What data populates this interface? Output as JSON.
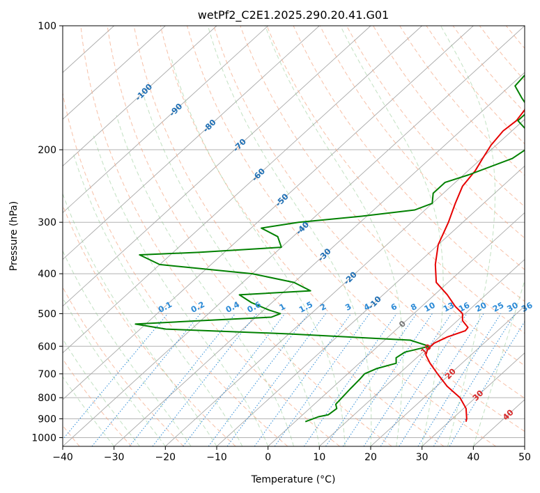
{
  "chart_data": {
    "type": "line",
    "title": "wetPf2_C2E1.2025.290.20.41.G01",
    "xlabel": "Temperature (°C)",
    "ylabel": "Pressure (hPa)",
    "xlim": [
      -40,
      50
    ],
    "ylim": [
      1050,
      100
    ],
    "y_scale": "log",
    "x_ticks": [
      -40,
      -30,
      -20,
      -10,
      0,
      10,
      20,
      30,
      40,
      50
    ],
    "y_ticks": [
      100,
      200,
      300,
      400,
      500,
      600,
      700,
      800,
      900,
      1000
    ],
    "grid": true,
    "series": [
      {
        "role": "temperature",
        "color": "#e60000",
        "points": [
          [
            33.3,
            915
          ],
          [
            32.8,
            900
          ],
          [
            30.5,
            850
          ],
          [
            27.0,
            800
          ],
          [
            22.0,
            750
          ],
          [
            17.5,
            700
          ],
          [
            13.8,
            660
          ],
          [
            11.2,
            630
          ],
          [
            10.3,
            610
          ],
          [
            10.3,
            590
          ],
          [
            11.5,
            570
          ],
          [
            13.7,
            550
          ],
          [
            13.5,
            540
          ],
          [
            11.0,
            520
          ],
          [
            9.5,
            500
          ],
          [
            6.5,
            480
          ],
          [
            2.5,
            450
          ],
          [
            -2.3,
            420
          ],
          [
            -6.3,
            380
          ],
          [
            -10.0,
            340
          ],
          [
            -12.8,
            300
          ],
          [
            -15.5,
            270
          ],
          [
            -17.8,
            245
          ],
          [
            -18.6,
            225
          ],
          [
            -19.8,
            210
          ],
          [
            -21.0,
            195
          ],
          [
            -21.7,
            180
          ],
          [
            -21.3,
            170
          ],
          [
            -22.0,
            160
          ],
          [
            -25.0,
            145
          ],
          [
            -26.6,
            135
          ],
          [
            -28.1,
            125
          ],
          [
            -28.9,
            115
          ],
          [
            -28.4,
            110
          ],
          [
            -26.5,
            105
          ],
          [
            -25.3,
            100
          ]
        ]
      },
      {
        "role": "dewpoint",
        "color": "#008000",
        "points": [
          [
            2.0,
            915
          ],
          [
            3.5,
            890
          ],
          [
            5.0,
            880
          ],
          [
            5.3,
            850
          ],
          [
            4.2,
            830
          ],
          [
            4.0,
            800
          ],
          [
            3.7,
            760
          ],
          [
            3.5,
            720
          ],
          [
            3.3,
            700
          ],
          [
            4.5,
            680
          ],
          [
            7.2,
            660
          ],
          [
            6.0,
            640
          ],
          [
            6.5,
            620
          ],
          [
            10.0,
            600
          ],
          [
            5.0,
            580
          ],
          [
            -20.0,
            560
          ],
          [
            -45.0,
            545
          ],
          [
            -52.0,
            530
          ],
          [
            -40.0,
            520
          ],
          [
            -27.0,
            510
          ],
          [
            -26.0,
            500
          ],
          [
            -29.0,
            490
          ],
          [
            -34.0,
            470
          ],
          [
            -38.0,
            450
          ],
          [
            -25.0,
            440
          ],
          [
            -30.0,
            420
          ],
          [
            -40.0,
            400
          ],
          [
            -60.0,
            380
          ],
          [
            -66.0,
            360
          ],
          [
            -55.0,
            355
          ],
          [
            -40.0,
            345
          ],
          [
            -43.0,
            325
          ],
          [
            -48.0,
            310
          ],
          [
            -42.0,
            300
          ],
          [
            -31.0,
            290
          ],
          [
            -22.0,
            280
          ],
          [
            -20.0,
            270
          ],
          [
            -22.0,
            255
          ],
          [
            -22.0,
            240
          ],
          [
            -19.0,
            230
          ],
          [
            -14.0,
            210
          ],
          [
            -13.0,
            195
          ],
          [
            -17.0,
            180
          ],
          [
            -21.0,
            170
          ],
          [
            -21.0,
            160
          ],
          [
            -25.0,
            150
          ],
          [
            -29.0,
            140
          ],
          [
            -29.5,
            130
          ],
          [
            -31.0,
            120
          ],
          [
            -29.5,
            115
          ],
          [
            -25.0,
            110
          ],
          [
            -19.0,
            100
          ]
        ]
      }
    ],
    "isotherm_labels": [
      {
        "text": "-100",
        "t": -100,
        "p": 145,
        "color": "#1f6fb4"
      },
      {
        "text": "-90",
        "t": -90,
        "p": 160,
        "color": "#1f6fb4"
      },
      {
        "text": "-80",
        "t": -80,
        "p": 175,
        "color": "#1f6fb4"
      },
      {
        "text": "-70",
        "t": -70,
        "p": 195,
        "color": "#1f6fb4"
      },
      {
        "text": "-60",
        "t": -60,
        "p": 230,
        "color": "#1f6fb4"
      },
      {
        "text": "-50",
        "t": -50,
        "p": 265,
        "color": "#1f6fb4"
      },
      {
        "text": "-40",
        "t": -40,
        "p": 310,
        "color": "#1f6fb4"
      },
      {
        "text": "-30",
        "t": -30,
        "p": 360,
        "color": "#1f6fb4"
      },
      {
        "text": "-20",
        "t": -20,
        "p": 410,
        "color": "#1f6fb4"
      },
      {
        "text": "-10",
        "t": -10,
        "p": 470,
        "color": "#1f6fb4"
      },
      {
        "text": "0",
        "t": 0,
        "p": 530,
        "color": "#777777"
      },
      {
        "text": "10",
        "t": 10,
        "p": 610,
        "color": "#d62728"
      },
      {
        "text": "20",
        "t": 20,
        "p": 700,
        "color": "#d62728"
      },
      {
        "text": "30",
        "t": 30,
        "p": 790,
        "color": "#d62728"
      },
      {
        "text": "40",
        "t": 40,
        "p": 880,
        "color": "#d62728"
      }
    ],
    "mixing_ratio_labels": [
      "0.1",
      "0.2",
      "0.4",
      "0.6",
      "1",
      "1.5",
      "2",
      "3",
      "4",
      "6",
      "8",
      "10",
      "13",
      "16",
      "20",
      "25",
      "30",
      "36"
    ]
  }
}
